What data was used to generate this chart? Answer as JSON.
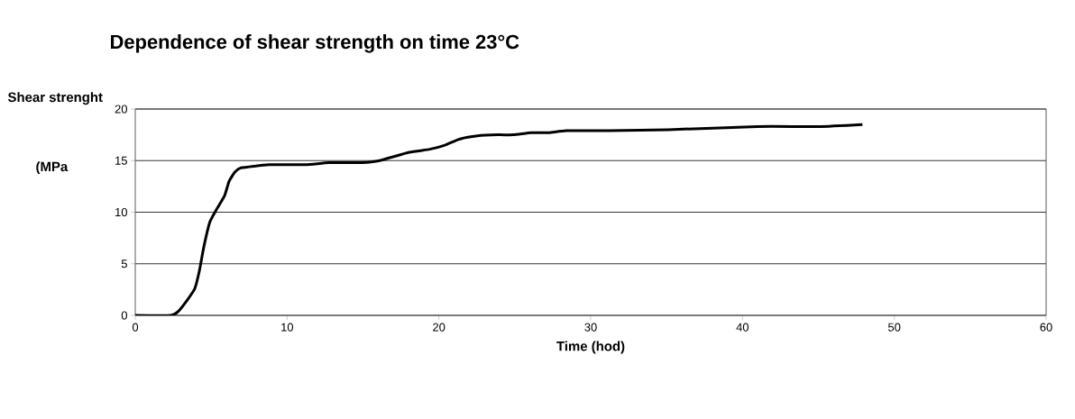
{
  "chart_data": {
    "type": "line",
    "title": "Dependence of shear strength on time 23°C",
    "xlabel": "Time (hod)",
    "ylabel": "Shear strenght",
    "annotations": [
      "(MPa"
    ],
    "x": [
      0,
      2.35,
      2.84,
      3.43,
      3.92,
      4.22,
      4.51,
      4.9,
      5.29,
      5.88,
      6.18,
      6.57,
      6.96,
      8.82,
      11.2,
      12.75,
      14.9,
      16.1,
      18.04,
      19.4,
      20.4,
      21.4,
      22.55,
      23.9,
      24.9,
      26.1,
      27.25,
      28.4,
      31.2,
      35.1,
      41.0,
      45.0,
      47.9
    ],
    "values": [
      0,
      0,
      0.4,
      1.5,
      2.6,
      4.3,
      6.6,
      9,
      10.1,
      11.6,
      13,
      13.9,
      14.3,
      14.6,
      14.6,
      14.8,
      14.8,
      15,
      15.8,
      16.1,
      16.5,
      17.1,
      17.4,
      17.5,
      17.5,
      17.7,
      17.7,
      17.9,
      17.9,
      18,
      18.3,
      18.3,
      18.5
    ],
    "color": "#000000",
    "xlim": [
      0,
      60
    ],
    "ylim": [
      0,
      20
    ],
    "xticks": [
      0,
      10,
      20,
      30,
      40,
      50,
      60
    ],
    "yticks": [
      0,
      5,
      10,
      15,
      20
    ],
    "grid": "y",
    "marker": "none",
    "line_style": "solid"
  }
}
